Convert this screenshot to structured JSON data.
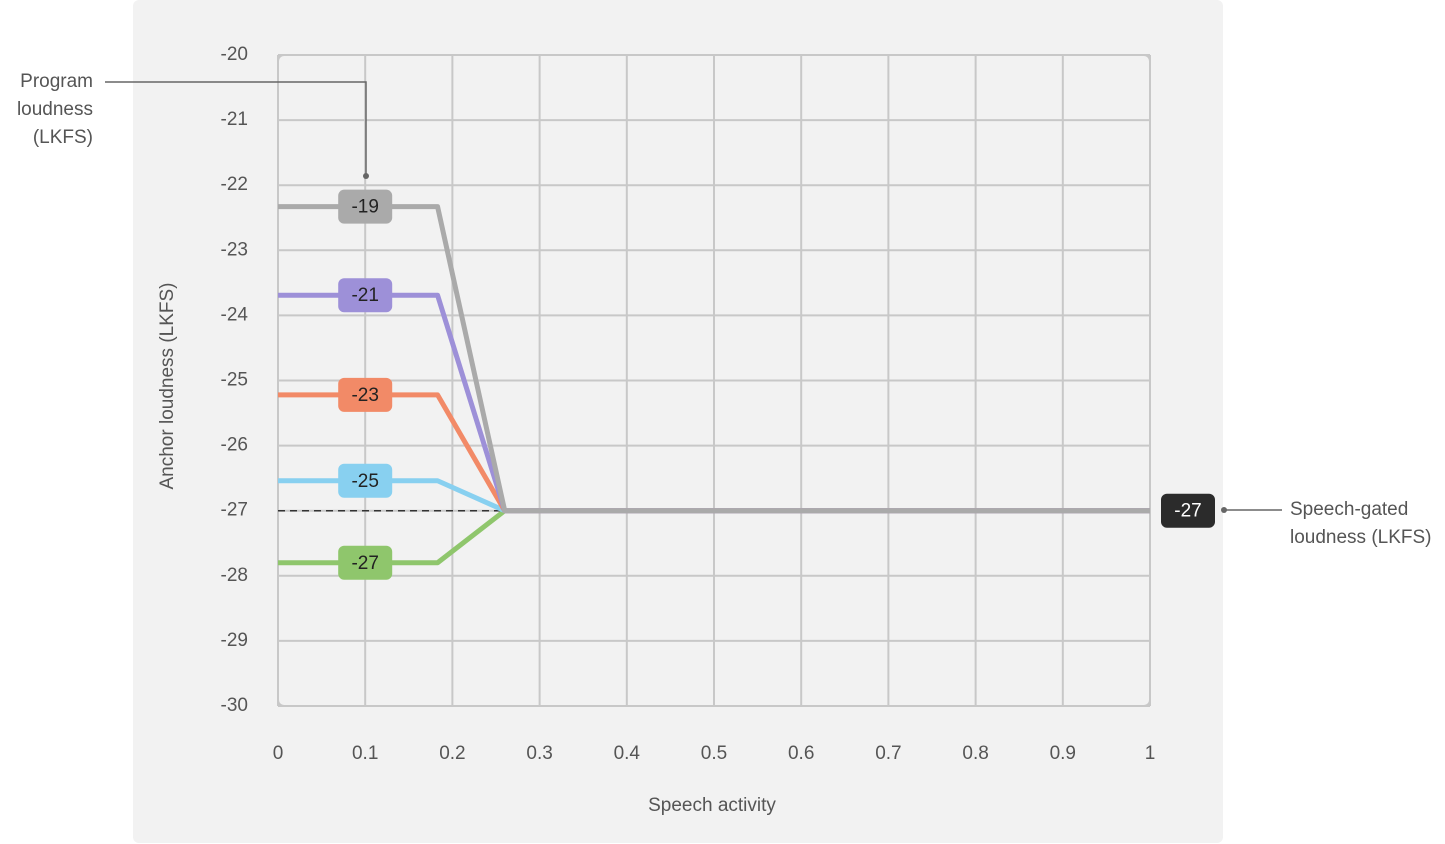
{
  "chart_data": {
    "type": "line",
    "x_label": "Speech activity",
    "y_label": "Anchor loudness (LKFS)",
    "x": [
      0,
      0.183,
      0.26,
      1
    ],
    "series": [
      {
        "name": "-19",
        "color": "#aaaaaa",
        "values": [
          -22.33,
          -22.33,
          -27,
          -27
        ]
      },
      {
        "name": "-21",
        "color": "#9d90d8",
        "values": [
          -23.69,
          -23.69,
          -27,
          -27
        ]
      },
      {
        "name": "-23",
        "color": "#f28a67",
        "values": [
          -25.22,
          -25.22,
          -27,
          -27
        ]
      },
      {
        "name": "-25",
        "color": "#88d0f0",
        "values": [
          -26.54,
          -26.54,
          -27,
          -27
        ]
      },
      {
        "name": "-27",
        "color": "#8fc66c",
        "values": [
          -27.8,
          -27.8,
          -27,
          -27
        ]
      }
    ],
    "xlim": [
      0,
      1
    ],
    "xticks": [
      0,
      0.1,
      0.2,
      0.3,
      0.4,
      0.5,
      0.6,
      0.7,
      0.8,
      0.9,
      1
    ],
    "ylim": [
      -30,
      -20
    ],
    "yticks": [
      -20,
      -21,
      -22,
      -23,
      -24,
      -25,
      -26,
      -27,
      -28,
      -29,
      -30
    ],
    "grid": true,
    "series_label_x": 0.1,
    "program_loudness_label": "Program loudness (LKFS)",
    "speech_gated_label": "Speech-gated loudness (LKFS)",
    "speech_gated_value": -27
  }
}
